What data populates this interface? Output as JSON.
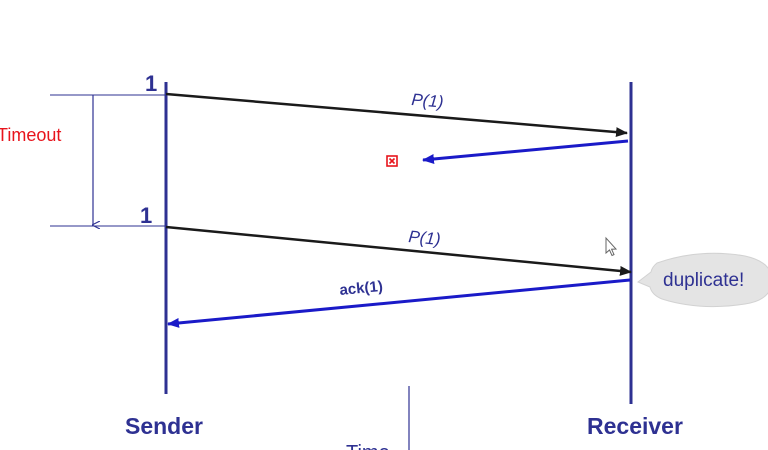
{
  "sender": {
    "label": "Sender",
    "first_seq": "1",
    "second_seq": "1"
  },
  "receiver": {
    "label": "Receiver"
  },
  "timeout": {
    "label": "Timeout"
  },
  "messages": {
    "first_packet": "P(1)",
    "second_packet": "P(1)",
    "ack": "ack(1)"
  },
  "callout": {
    "text": "duplicate!"
  },
  "time_axis": {
    "label": "Time"
  },
  "colors": {
    "timeline": "#2e3192",
    "packet_arrow": "#1a1a1a",
    "ack_arrow": "#1a1ac8",
    "timeout_text": "#e8141c",
    "lost_marker": "#e8141c",
    "bubble_fill": "#e4e4e4"
  }
}
